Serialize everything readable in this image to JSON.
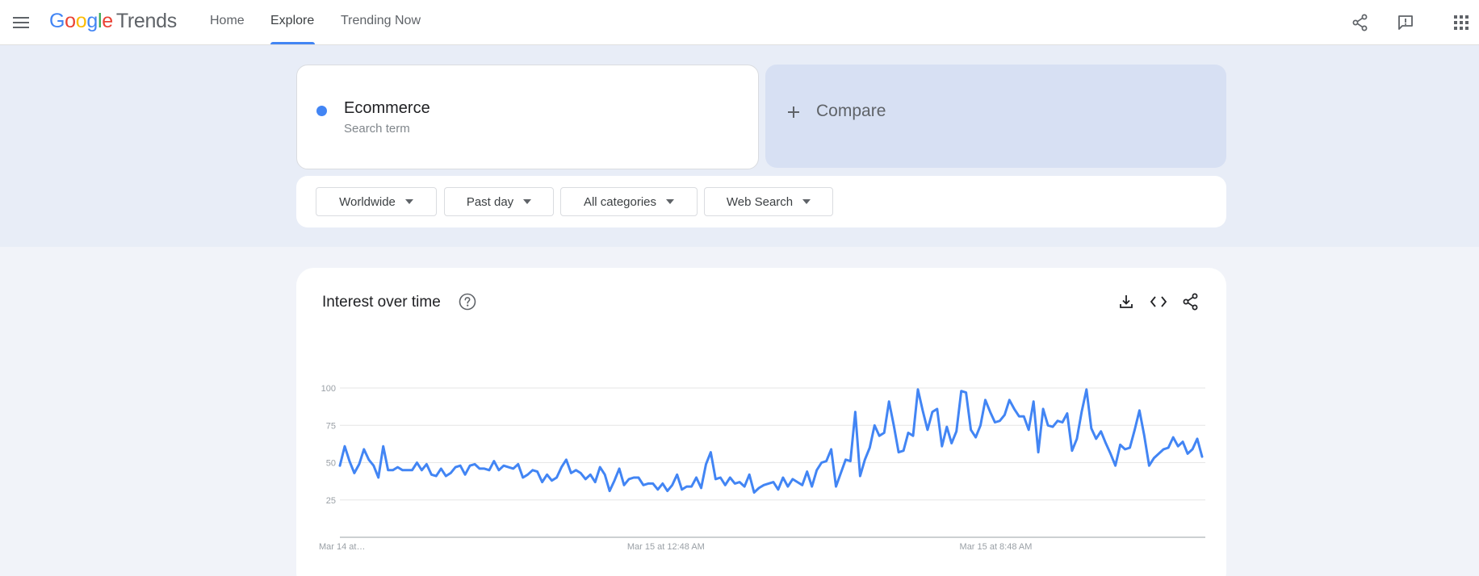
{
  "header": {
    "logo": {
      "brand": [
        "G",
        "o",
        "o",
        "g",
        "l",
        "e"
      ],
      "product": "Trends"
    },
    "nav": [
      {
        "label": "Home"
      },
      {
        "label": "Explore"
      },
      {
        "label": "Trending Now"
      }
    ],
    "active_tab": "Explore"
  },
  "search": {
    "term": "Ecommerce",
    "term_type": "Search term",
    "term_color": "#4285f4",
    "compare_label": "Compare"
  },
  "filters": {
    "region": "Worldwide",
    "time": "Past day",
    "category": "All categories",
    "property": "Web Search"
  },
  "chart_card": {
    "title": "Interest over time"
  },
  "chart_data": {
    "type": "line",
    "title": "Interest over time",
    "xlabel": "",
    "ylabel": "",
    "ylim": [
      0,
      100
    ],
    "y_ticks": [
      25,
      50,
      75,
      100
    ],
    "x_tick_labels": [
      "Mar 14 at…",
      "Mar 15 at 12:48 AM",
      "Mar 15 at 8:48 AM"
    ],
    "x_tick_index": [
      0,
      64,
      133
    ],
    "grid": true,
    "series": [
      {
        "name": "Ecommerce",
        "color": "#4285f4",
        "values": [
          48,
          61,
          51,
          43,
          49,
          59,
          52,
          48,
          40,
          61,
          45,
          45,
          47,
          45,
          45,
          45,
          50,
          45,
          49,
          42,
          41,
          46,
          41,
          43,
          47,
          48,
          42,
          48,
          49,
          46,
          46,
          45,
          51,
          45,
          48,
          47,
          46,
          49,
          40,
          42,
          45,
          44,
          37,
          42,
          38,
          40,
          47,
          52,
          43,
          45,
          43,
          39,
          42,
          37,
          47,
          42,
          31,
          38,
          46,
          35,
          39,
          40,
          40,
          35,
          36,
          36,
          32,
          36,
          31,
          35,
          42,
          32,
          34,
          34,
          40,
          33,
          49,
          57,
          39,
          40,
          35,
          40,
          36,
          37,
          34,
          42,
          30,
          33,
          35,
          36,
          37,
          32,
          40,
          34,
          39,
          37,
          35,
          44,
          34,
          45,
          50,
          51,
          59,
          34,
          43,
          52,
          51,
          84,
          41,
          52,
          60,
          75,
          68,
          70,
          91,
          75,
          57,
          58,
          70,
          68,
          99,
          85,
          72,
          84,
          86,
          61,
          74,
          63,
          71,
          98,
          97,
          72,
          67,
          75,
          92,
          84,
          77,
          78,
          82,
          92,
          86,
          81,
          81,
          72,
          91,
          57,
          86,
          75,
          74,
          78,
          77,
          83,
          58,
          66,
          84,
          99,
          73,
          66,
          71,
          63,
          56,
          48,
          62,
          59,
          60,
          72,
          85,
          68,
          48,
          53,
          56,
          59,
          60,
          67,
          61,
          64,
          56,
          59,
          66,
          54
        ]
      }
    ]
  }
}
